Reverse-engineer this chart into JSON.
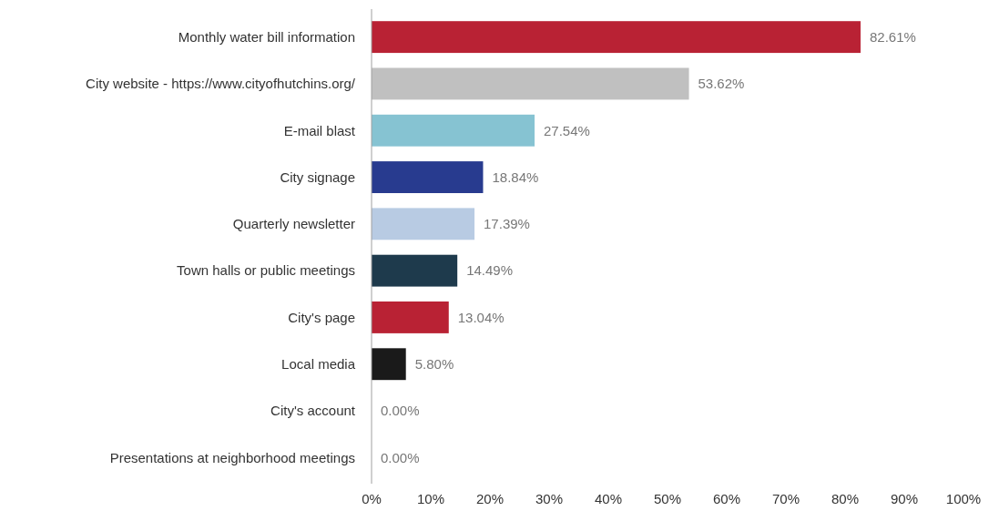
{
  "chart_data": {
    "type": "bar",
    "orientation": "horizontal",
    "categories": [
      "Monthly water bill information",
      "City website - https://www.cityofhutchins.org/",
      "E-mail blast",
      "City signage",
      "Quarterly newsletter",
      "Town halls or public meetings",
      "City's page",
      "Local media",
      "City's account",
      "Presentations at neighborhood meetings"
    ],
    "values": [
      82.61,
      53.62,
      27.54,
      18.84,
      17.39,
      14.49,
      13.04,
      5.8,
      0,
      0
    ],
    "value_labels": [
      "82.61%",
      "53.62%",
      "27.54%",
      "18.84%",
      "17.39%",
      "14.49%",
      "13.04%",
      "5.80%",
      "0.00%",
      "0.00%"
    ],
    "colors": [
      "#b92234",
      "#c0c0c0",
      "#86c3d2",
      "#283b8f",
      "#b8cbe3",
      "#1e3a4c",
      "#b92234",
      "#1a1a1a",
      "#b92234",
      "#b92234"
    ],
    "xlim": [
      0,
      100
    ],
    "xticks": [
      {
        "value": 0,
        "label": "0%"
      },
      {
        "value": 10,
        "label": "10%"
      },
      {
        "value": 20,
        "label": "20%"
      },
      {
        "value": 30,
        "label": "30%"
      },
      {
        "value": 40,
        "label": "40%"
      },
      {
        "value": 50,
        "label": "50%"
      },
      {
        "value": 60,
        "label": "60%"
      },
      {
        "value": 70,
        "label": "70%"
      },
      {
        "value": 80,
        "label": "80%"
      },
      {
        "value": 90,
        "label": "90%"
      },
      {
        "value": 100,
        "label": "100%"
      }
    ],
    "grid": false
  }
}
